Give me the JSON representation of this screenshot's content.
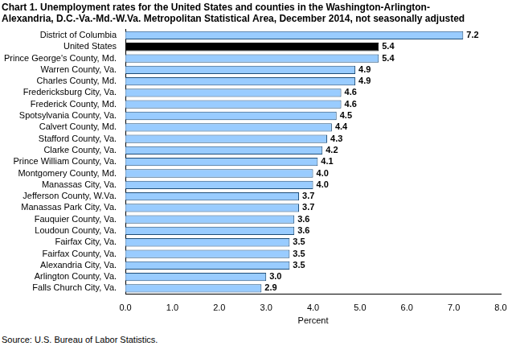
{
  "chart_data": {
    "type": "bar",
    "orientation": "horizontal",
    "title": [
      "Chart 1. Unemployment rates for the United States and counties in the Washington-Arlington-",
      "Alexandria, D.C.-Va.-Md.-W.Va. Metropolitan Statistical Area, December 2014, not seasonally adjusted"
    ],
    "annotations": [
      "Source: U.S. Bureau of Labor Statistics."
    ],
    "xlabel": "Percent",
    "categories": [
      "District of Columbia",
      "United States",
      "Prince George's County, Md.",
      "Warren County, Va.",
      "Charles County, Md.",
      "Fredericksburg City, Va.",
      "Frederick County, Md.",
      "Spotsylvania County, Va.",
      "Calvert County, Md.",
      "Stafford County, Va.",
      "Clarke County, Va.",
      "Prince William County, Va.",
      "Montgomery County, Md.",
      "Manassas City, Va.",
      "Jefferson County, W.Va.",
      "Manassas Park City, Va.",
      "Fauquier County, Va.",
      "Loudoun County, Va.",
      "Fairfax City, Va.",
      "Fairfax County, Va.",
      "Alexandria City, Va.",
      "Arlington County, Va.",
      "Falls Church City, Va."
    ],
    "values": [
      7.2,
      5.4,
      5.4,
      4.9,
      4.9,
      4.6,
      4.6,
      4.5,
      4.4,
      4.3,
      4.2,
      4.1,
      4,
      4,
      3.7,
      3.7,
      3.6,
      3.6,
      3.5,
      3.5,
      3.5,
      3,
      2.9
    ],
    "value_labels": [
      "7.2",
      "5.4",
      "5.4",
      "4.9",
      "4.9",
      "4.6",
      "4.6",
      "4.5",
      "4.4",
      "4.3",
      "4.2",
      "4.1",
      "4.0",
      "4.0",
      "3.7",
      "3.7",
      "3.6",
      "3.6",
      "3.5",
      "3.5",
      "3.5",
      "3.0",
      "2.9"
    ],
    "colors": [
      "#99ccff",
      "#000000",
      "#99ccff",
      "#99ccff",
      "#99ccff",
      "#99ccff",
      "#99ccff",
      "#99ccff",
      "#99ccff",
      "#99ccff",
      "#99ccff",
      "#99ccff",
      "#99ccff",
      "#99ccff",
      "#99ccff",
      "#99ccff",
      "#99ccff",
      "#99ccff",
      "#99ccff",
      "#99ccff",
      "#99ccff",
      "#99ccff",
      "#99ccff"
    ],
    "xlim": [
      0,
      8
    ],
    "xticks": [
      {
        "value": 0,
        "label": "0.0"
      },
      {
        "value": 1,
        "label": "1.0"
      },
      {
        "value": 2,
        "label": "2.0"
      },
      {
        "value": 3,
        "label": "3.0"
      },
      {
        "value": 4,
        "label": "4.0"
      },
      {
        "value": 5,
        "label": "5.0"
      },
      {
        "value": 6,
        "label": "6.0"
      },
      {
        "value": 7,
        "label": "7.0"
      },
      {
        "value": 8,
        "label": "8.0"
      }
    ],
    "grid": false,
    "data_labels": true
  }
}
